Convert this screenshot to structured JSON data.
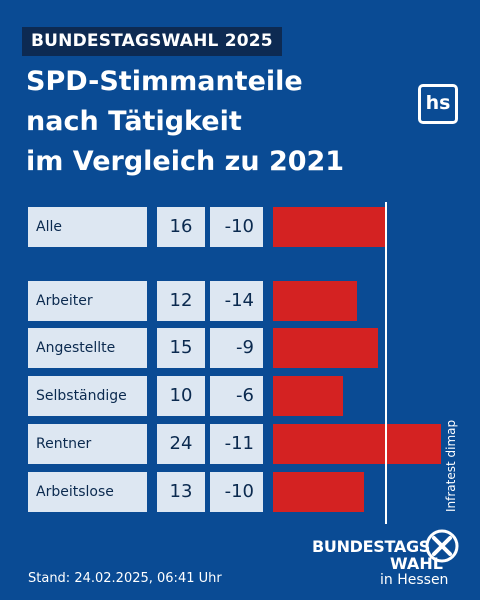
{
  "header": {
    "badge": "BUNDESTAGSWAHL 2025",
    "title_lines": [
      "SPD-Stimmanteile",
      "nach Tätigkeit",
      "im Vergleich zu 2021"
    ],
    "logo": "hs"
  },
  "colors": {
    "background": "#0a4b94",
    "bar": "#d42222",
    "cell": "#dde7f2",
    "badge": "#0d2a52"
  },
  "chart_data": {
    "type": "bar",
    "orientation": "horizontal",
    "categories": [
      "Alle",
      "Arbeiter",
      "Angestellte",
      "Selbständige",
      "Rentner",
      "Arbeitslose"
    ],
    "series": [
      {
        "values": [
          16,
          12,
          15,
          10,
          24,
          13
        ]
      }
    ],
    "changes": [
      "-10",
      "-14",
      "-9",
      "-6",
      "-11",
      "-10"
    ],
    "reference_value": 16
  },
  "source": "Infratest dimap",
  "footer": {
    "stand": "Stand: 24.02.2025, 06:41 Uhr",
    "brand_line1": "BUNDESTAGS",
    "brand_line2": "WAHL",
    "brand_line3": "in Hessen",
    "brand_icon": "x-cross-icon"
  }
}
